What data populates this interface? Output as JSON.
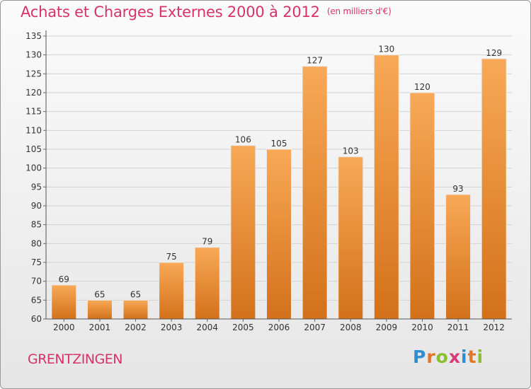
{
  "title": "Achats et Charges Externes 2000 à 2012",
  "unit": "(en milliers d'€)",
  "place": "GRENTZINGEN",
  "logo": "Proxiti",
  "colors": {
    "title": "#d6336a",
    "bar_light": "#f7a552",
    "bar_dark": "#d4711c"
  },
  "chart_data": {
    "type": "bar",
    "title": "Achats et Charges Externes 2000 à 2012",
    "xlabel": "",
    "ylabel": "",
    "categories": [
      "2000",
      "2001",
      "2002",
      "2003",
      "2004",
      "2005",
      "2006",
      "2007",
      "2008",
      "2009",
      "2010",
      "2011",
      "2012"
    ],
    "values": [
      69,
      65,
      65,
      75,
      79,
      106,
      105,
      127,
      103,
      130,
      120,
      93,
      129
    ],
    "ylim": [
      60,
      135
    ],
    "yticks": [
      60,
      65,
      70,
      75,
      80,
      85,
      90,
      95,
      100,
      105,
      110,
      115,
      120,
      125,
      130,
      135
    ],
    "grid": true,
    "legend": "none"
  }
}
